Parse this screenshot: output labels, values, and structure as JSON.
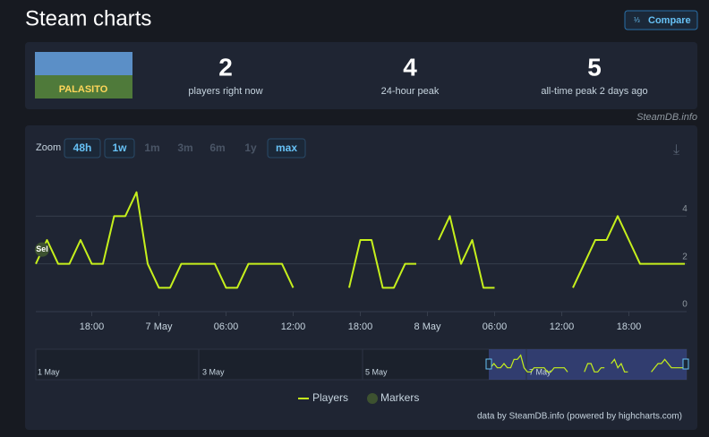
{
  "header": {
    "title": "Steam charts",
    "compare": "Compare"
  },
  "game": {
    "image_text": "PALASITO"
  },
  "stats": [
    {
      "value": 2,
      "label": "players right now"
    },
    {
      "value": 4,
      "label": "24-hour peak"
    },
    {
      "value": 5,
      "label": "all-time peak 2 days ago"
    }
  ],
  "source": "SteamDB.info",
  "zoom": {
    "label": "Zoom",
    "buttons": [
      "48h",
      "1w",
      "1m",
      "3m",
      "6m",
      "1y",
      "max"
    ]
  },
  "chart_data": {
    "type": "line",
    "categories": [
      null,
      null,
      null,
      null,
      null,
      "18:00",
      null,
      null,
      null,
      null,
      null,
      "7 May",
      null,
      null,
      null,
      null,
      null,
      "06:00",
      null,
      null,
      null,
      null,
      null,
      "12:00",
      null,
      null,
      null,
      null,
      null,
      "18:00",
      null,
      null,
      null,
      null,
      null,
      "8 May",
      null,
      null,
      null,
      null,
      null,
      "06:00",
      null,
      null,
      null,
      null,
      null,
      "12:00",
      null,
      null,
      null,
      null,
      null,
      "18:00",
      null,
      null,
      null,
      null,
      null
    ],
    "series": [
      {
        "name": "Players",
        "color": "#c6f01c",
        "values": [
          2,
          3,
          2,
          2,
          3,
          2,
          2,
          4,
          4,
          5,
          2,
          1,
          1,
          2,
          2,
          2,
          2,
          1,
          1,
          2,
          2,
          2,
          2,
          1,
          null,
          null,
          null,
          null,
          1,
          3,
          3,
          1,
          1,
          2,
          2,
          null,
          3,
          4,
          2,
          3,
          1,
          1,
          null,
          null,
          null,
          null,
          null,
          null,
          1,
          2,
          3,
          3,
          4,
          3,
          2,
          2,
          2,
          2,
          2
        ]
      }
    ],
    "markers": {
      "name": "Markers",
      "color": "#3d5230",
      "items": [
        {
          "label": "Sel",
          "category_index": 0,
          "value": 2.6
        }
      ]
    },
    "ylim": [
      0,
      6
    ],
    "yticks": [
      0,
      2,
      4
    ],
    "grid": true,
    "navigator_labels": [
      "1 May",
      "3 May",
      "5 May",
      "7 May"
    ],
    "credit": "data by SteamDB.info (powered by highcharts.com)"
  }
}
